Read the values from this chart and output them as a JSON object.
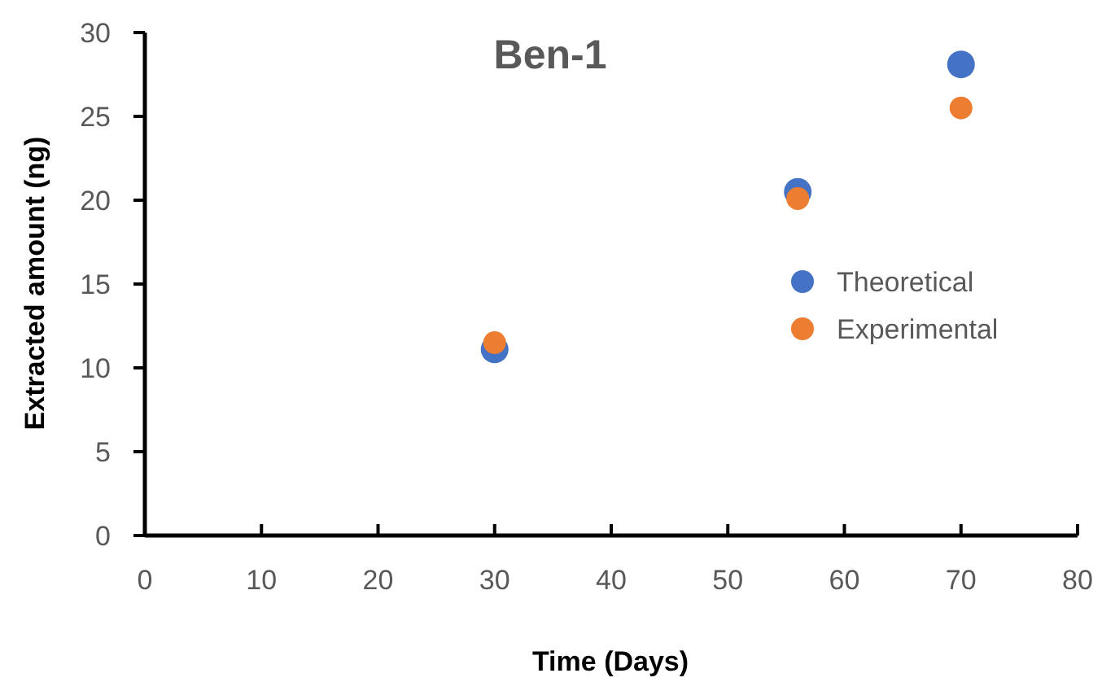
{
  "chart_data": {
    "type": "scatter",
    "title": "Ben-1",
    "xlabel": "Time (Days)",
    "ylabel": "Extracted amount (ng)",
    "x": [
      30,
      56,
      70
    ],
    "series": [
      {
        "name": "Theoretical",
        "color": "#4472c4",
        "values": [
          11.1,
          20.5,
          28.1
        ]
      },
      {
        "name": "Experimental",
        "color": "#ed7d31",
        "values": [
          11.5,
          20.1,
          25.5
        ]
      }
    ],
    "xlim": [
      0,
      80
    ],
    "xticks": [
      0,
      10,
      20,
      30,
      40,
      50,
      60,
      70,
      80
    ],
    "ylim": [
      0,
      30
    ],
    "yticks": [
      0,
      5,
      10,
      15,
      20,
      25,
      30
    ],
    "marker": "circle",
    "legend": "right",
    "grid": false
  }
}
